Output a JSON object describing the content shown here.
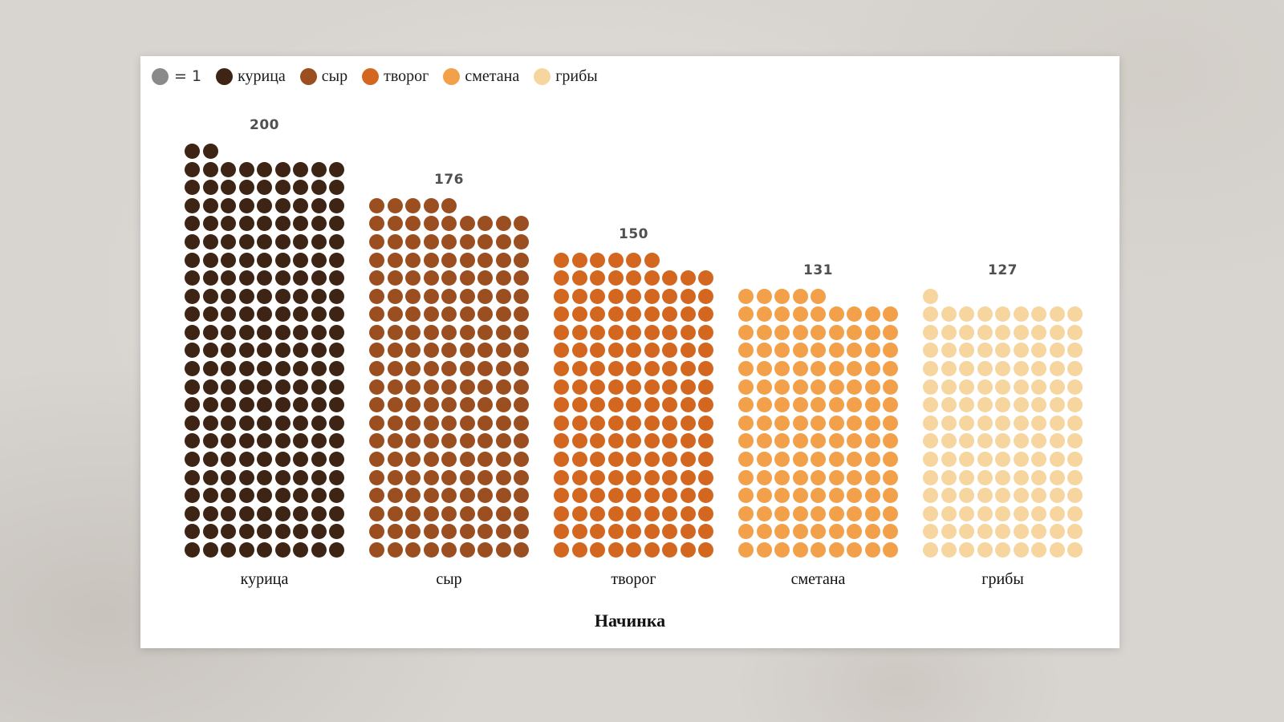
{
  "page": {
    "background_color": "#d8d5d1",
    "card_color": "#ffffff"
  },
  "legend": {
    "unit_label": "= 1",
    "unit_color": "#8a8a8a",
    "items": [
      {
        "label": "курица",
        "color": "#3e2414"
      },
      {
        "label": "сыр",
        "color": "#9b4e20"
      },
      {
        "label": "творог",
        "color": "#d3671f"
      },
      {
        "label": "сметана",
        "color": "#f3a04a"
      },
      {
        "label": "грибы",
        "color": "#f7d59e"
      }
    ]
  },
  "axis": {
    "title": "Начинка"
  },
  "chart_data": {
    "type": "bar",
    "style": "pictogram (unit dots, waffle columns)",
    "unit": 1,
    "columns_per_block": 9,
    "categories": [
      "курица",
      "сыр",
      "творог",
      "сметана",
      "грибы"
    ],
    "values": [
      200,
      176,
      150,
      131,
      127
    ],
    "colors": [
      "#3e2414",
      "#9b4e20",
      "#d3671f",
      "#f3a04a",
      "#f7d59e"
    ],
    "title": "",
    "xlabel": "Начинка",
    "ylabel": "",
    "legend_position": "top-left",
    "grid": false,
    "notes": "Each dot = 1; blocks are 9 dots wide, remainder dots form a left-aligned partial top row; value label printed above each block"
  }
}
